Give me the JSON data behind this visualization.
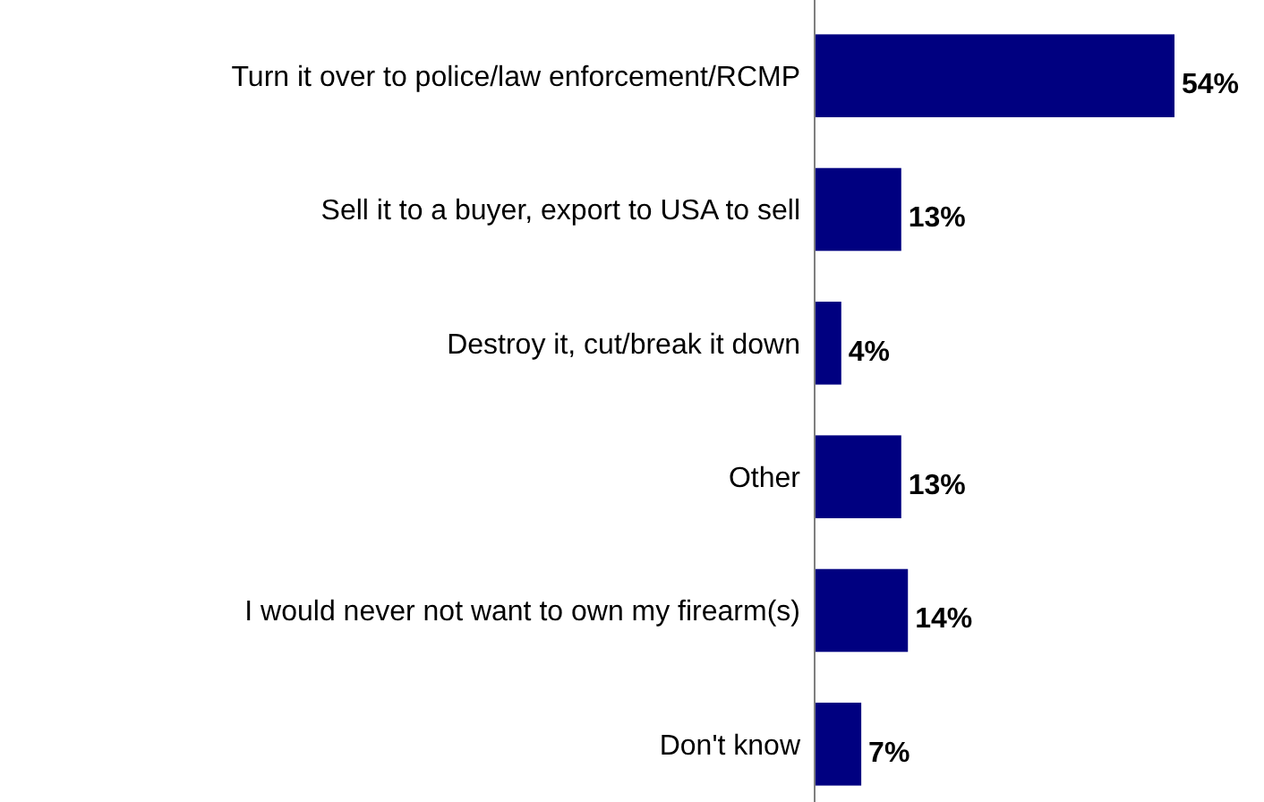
{
  "chart_data": {
    "type": "bar",
    "orientation": "horizontal",
    "categories": [
      "Turn it over to police/law enforcement/RCMP",
      "Sell it to a buyer, export to USA to sell",
      "Destroy it, cut/break it down",
      "Other",
      "I would never not want to own my firearm(s)",
      "Don't know"
    ],
    "values": [
      54,
      13,
      4,
      13,
      14,
      7
    ],
    "value_labels": [
      "54%",
      "13%",
      "4%",
      "13%",
      "14%",
      "7%"
    ],
    "color": "#000080"
  }
}
